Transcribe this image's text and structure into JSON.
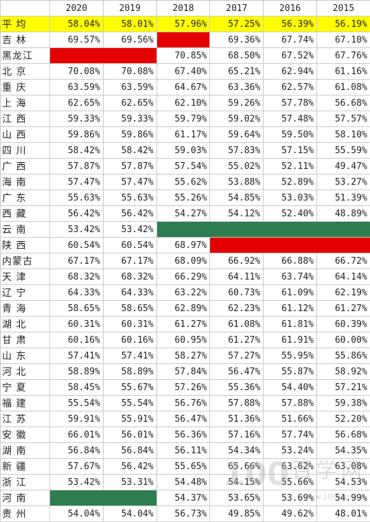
{
  "years": [
    "2020",
    "2019",
    "2018",
    "2017",
    "2016",
    "2015"
  ],
  "rows": [
    {
      "name": "平 均",
      "cells": [
        {
          "v": "58.04%"
        },
        {
          "v": "58.01%"
        },
        {
          "v": "57.96%"
        },
        {
          "v": "57.25%"
        },
        {
          "v": "56.39%"
        },
        {
          "v": "56.19%"
        }
      ],
      "highlight": "yellow"
    },
    {
      "name": "吉 林",
      "cells": [
        {
          "v": "69.57%"
        },
        {
          "v": "69.56%"
        },
        {
          "v": "",
          "fill": "red"
        },
        {
          "v": "69.36%"
        },
        {
          "v": "67.74%"
        },
        {
          "v": "67.10%"
        }
      ]
    },
    {
      "name": "黑龙江",
      "cells": [
        {
          "v": "",
          "fill": "red",
          "span": 2
        },
        {
          "v": "70.85%"
        },
        {
          "v": "68.50%"
        },
        {
          "v": "67.52%"
        },
        {
          "v": "67.76%"
        }
      ]
    },
    {
      "name": "北 京",
      "cells": [
        {
          "v": "70.08%"
        },
        {
          "v": "70.08%"
        },
        {
          "v": "67.40%"
        },
        {
          "v": "65.21%"
        },
        {
          "v": "62.94%"
        },
        {
          "v": "61.16%"
        }
      ]
    },
    {
      "name": "重 庆",
      "cells": [
        {
          "v": "63.59%"
        },
        {
          "v": "63.59%"
        },
        {
          "v": "64.67%"
        },
        {
          "v": "63.36%"
        },
        {
          "v": "62.57%"
        },
        {
          "v": "61.08%"
        }
      ]
    },
    {
      "name": "上 海",
      "cells": [
        {
          "v": "62.65%"
        },
        {
          "v": "62.65%"
        },
        {
          "v": "62.10%"
        },
        {
          "v": "59.26%"
        },
        {
          "v": "57.78%"
        },
        {
          "v": "56.68%"
        }
      ]
    },
    {
      "name": "江 西",
      "cells": [
        {
          "v": "59.33%"
        },
        {
          "v": "59.33%"
        },
        {
          "v": "59.79%"
        },
        {
          "v": "59.02%"
        },
        {
          "v": "57.48%"
        },
        {
          "v": "57.57%"
        }
      ]
    },
    {
      "name": "山 西",
      "cells": [
        {
          "v": "59.86%"
        },
        {
          "v": "59.86%"
        },
        {
          "v": "61.17%"
        },
        {
          "v": "59.64%"
        },
        {
          "v": "59.50%"
        },
        {
          "v": "58.10%"
        }
      ]
    },
    {
      "name": "四 川",
      "cells": [
        {
          "v": "58.42%"
        },
        {
          "v": "58.42%"
        },
        {
          "v": "59.03%"
        },
        {
          "v": "57.83%"
        },
        {
          "v": "57.15%"
        },
        {
          "v": "55.59%"
        }
      ]
    },
    {
      "name": "广 西",
      "cells": [
        {
          "v": "57.87%"
        },
        {
          "v": "57.87%"
        },
        {
          "v": "57.54%"
        },
        {
          "v": "55.02%"
        },
        {
          "v": "52.11%"
        },
        {
          "v": "49.47%"
        }
      ]
    },
    {
      "name": "海 南",
      "cells": [
        {
          "v": "57.47%"
        },
        {
          "v": "57.47%"
        },
        {
          "v": "55.62%"
        },
        {
          "v": "53.88%"
        },
        {
          "v": "52.89%"
        },
        {
          "v": "53.27%"
        }
      ]
    },
    {
      "name": "广 东",
      "cells": [
        {
          "v": "55.63%"
        },
        {
          "v": "55.63%"
        },
        {
          "v": "55.26%"
        },
        {
          "v": "54.85%"
        },
        {
          "v": "53.03%"
        },
        {
          "v": "51.39%"
        }
      ]
    },
    {
      "name": "西 藏",
      "cells": [
        {
          "v": "56.42%"
        },
        {
          "v": "56.42%"
        },
        {
          "v": "54.27%"
        },
        {
          "v": "54.12%"
        },
        {
          "v": "52.40%"
        },
        {
          "v": "48.89%"
        }
      ]
    },
    {
      "name": "云 南",
      "cells": [
        {
          "v": "53.42%"
        },
        {
          "v": "53.42%"
        },
        {
          "v": "",
          "fill": "green",
          "span": 4
        }
      ]
    },
    {
      "name": "陕 西",
      "cells": [
        {
          "v": "60.54%"
        },
        {
          "v": "60.54%"
        },
        {
          "v": "68.97%"
        },
        {
          "v": "",
          "fill": "red",
          "span": 3
        }
      ]
    },
    {
      "name": "内蒙古",
      "cells": [
        {
          "v": "67.17%"
        },
        {
          "v": "67.17%"
        },
        {
          "v": "68.09%"
        },
        {
          "v": "66.92%"
        },
        {
          "v": "66.88%"
        },
        {
          "v": "66.72%"
        }
      ]
    },
    {
      "name": "天 津",
      "cells": [
        {
          "v": "68.32%"
        },
        {
          "v": "68.32%"
        },
        {
          "v": "66.29%"
        },
        {
          "v": "64.11%"
        },
        {
          "v": "63.74%"
        },
        {
          "v": "64.14%"
        }
      ]
    },
    {
      "name": "辽 宁",
      "cells": [
        {
          "v": "64.33%"
        },
        {
          "v": "64.33%"
        },
        {
          "v": "63.22%"
        },
        {
          "v": "60.73%"
        },
        {
          "v": "61.09%"
        },
        {
          "v": "62.19%"
        }
      ]
    },
    {
      "name": "青 海",
      "cells": [
        {
          "v": "58.65%"
        },
        {
          "v": "58.65%"
        },
        {
          "v": "62.89%"
        },
        {
          "v": "62.23%"
        },
        {
          "v": "61.12%"
        },
        {
          "v": "61.27%"
        }
      ]
    },
    {
      "name": "湖 北",
      "cells": [
        {
          "v": "60.31%"
        },
        {
          "v": "60.31%"
        },
        {
          "v": "61.27%"
        },
        {
          "v": "61.08%"
        },
        {
          "v": "61.81%"
        },
        {
          "v": "60.39%"
        }
      ]
    },
    {
      "name": "甘 肃",
      "cells": [
        {
          "v": "60.16%"
        },
        {
          "v": "60.16%"
        },
        {
          "v": "60.95%"
        },
        {
          "v": "61.27%"
        },
        {
          "v": "61.91%"
        },
        {
          "v": "60.00%"
        }
      ]
    },
    {
      "name": "山 东",
      "cells": [
        {
          "v": "57.41%"
        },
        {
          "v": "57.41%"
        },
        {
          "v": "58.27%"
        },
        {
          "v": "57.27%"
        },
        {
          "v": "55.95%"
        },
        {
          "v": "55.86%"
        }
      ]
    },
    {
      "name": "河 北",
      "cells": [
        {
          "v": "58.89%"
        },
        {
          "v": "58.89%"
        },
        {
          "v": "57.84%"
        },
        {
          "v": "56.47%"
        },
        {
          "v": "55.87%"
        },
        {
          "v": "58.92%"
        }
      ]
    },
    {
      "name": "宁 夏",
      "cells": [
        {
          "v": "58.45%"
        },
        {
          "v": "55.67%"
        },
        {
          "v": "57.26%"
        },
        {
          "v": "55.36%"
        },
        {
          "v": "54.40%"
        },
        {
          "v": "57.21%"
        }
      ]
    },
    {
      "name": "福 建",
      "cells": [
        {
          "v": "55.54%"
        },
        {
          "v": "55.54%"
        },
        {
          "v": "56.76%"
        },
        {
          "v": "57.88%"
        },
        {
          "v": "57.88%"
        },
        {
          "v": "59.38%"
        }
      ]
    },
    {
      "name": "江 苏",
      "cells": [
        {
          "v": "59.91%"
        },
        {
          "v": "55.91%"
        },
        {
          "v": "56.47%"
        },
        {
          "v": "51.36%"
        },
        {
          "v": "51.66%"
        },
        {
          "v": "52.20%"
        }
      ]
    },
    {
      "name": "安 徽",
      "cells": [
        {
          "v": "66.01%"
        },
        {
          "v": "56.01%"
        },
        {
          "v": "56.36%"
        },
        {
          "v": "57.16%"
        },
        {
          "v": "57.74%"
        },
        {
          "v": "56.68%"
        }
      ]
    },
    {
      "name": "湖 南",
      "cells": [
        {
          "v": "56.84%"
        },
        {
          "v": "56.84%"
        },
        {
          "v": "56.11%"
        },
        {
          "v": "54.34%"
        },
        {
          "v": "53.24%"
        },
        {
          "v": "54.35%"
        }
      ]
    },
    {
      "name": "新 疆",
      "cells": [
        {
          "v": "57.67%"
        },
        {
          "v": "56.42%"
        },
        {
          "v": "55.65%"
        },
        {
          "v": "65.66%"
        },
        {
          "v": "63.62%"
        },
        {
          "v": "63.08%"
        }
      ]
    },
    {
      "name": "浙 江",
      "cells": [
        {
          "v": "53.42%"
        },
        {
          "v": "53.31%"
        },
        {
          "v": "54.48%"
        },
        {
          "v": "54.15%"
        },
        {
          "v": "55.66%"
        },
        {
          "v": "54.53%"
        }
      ]
    },
    {
      "name": "河 南",
      "cells": [
        {
          "v": "",
          "fill": "green",
          "span": 2
        },
        {
          "v": "54.37%"
        },
        {
          "v": "53.65%"
        },
        {
          "v": "53.69%"
        },
        {
          "v": "54.99%"
        }
      ]
    },
    {
      "name": "贵 州",
      "cells": [
        {
          "v": "54.04%"
        },
        {
          "v": "54.04%"
        },
        {
          "v": "56.73%"
        },
        {
          "v": "49.85%"
        },
        {
          "v": "49.62%"
        },
        {
          "v": "48.01%"
        }
      ]
    }
  ],
  "watermark": {
    "logo": "100",
    "text": "百学网",
    "url": "www.100xue.net"
  },
  "colors": {
    "yellow": "#ffff00",
    "red": "#e50000",
    "green": "#2e7d4f"
  }
}
